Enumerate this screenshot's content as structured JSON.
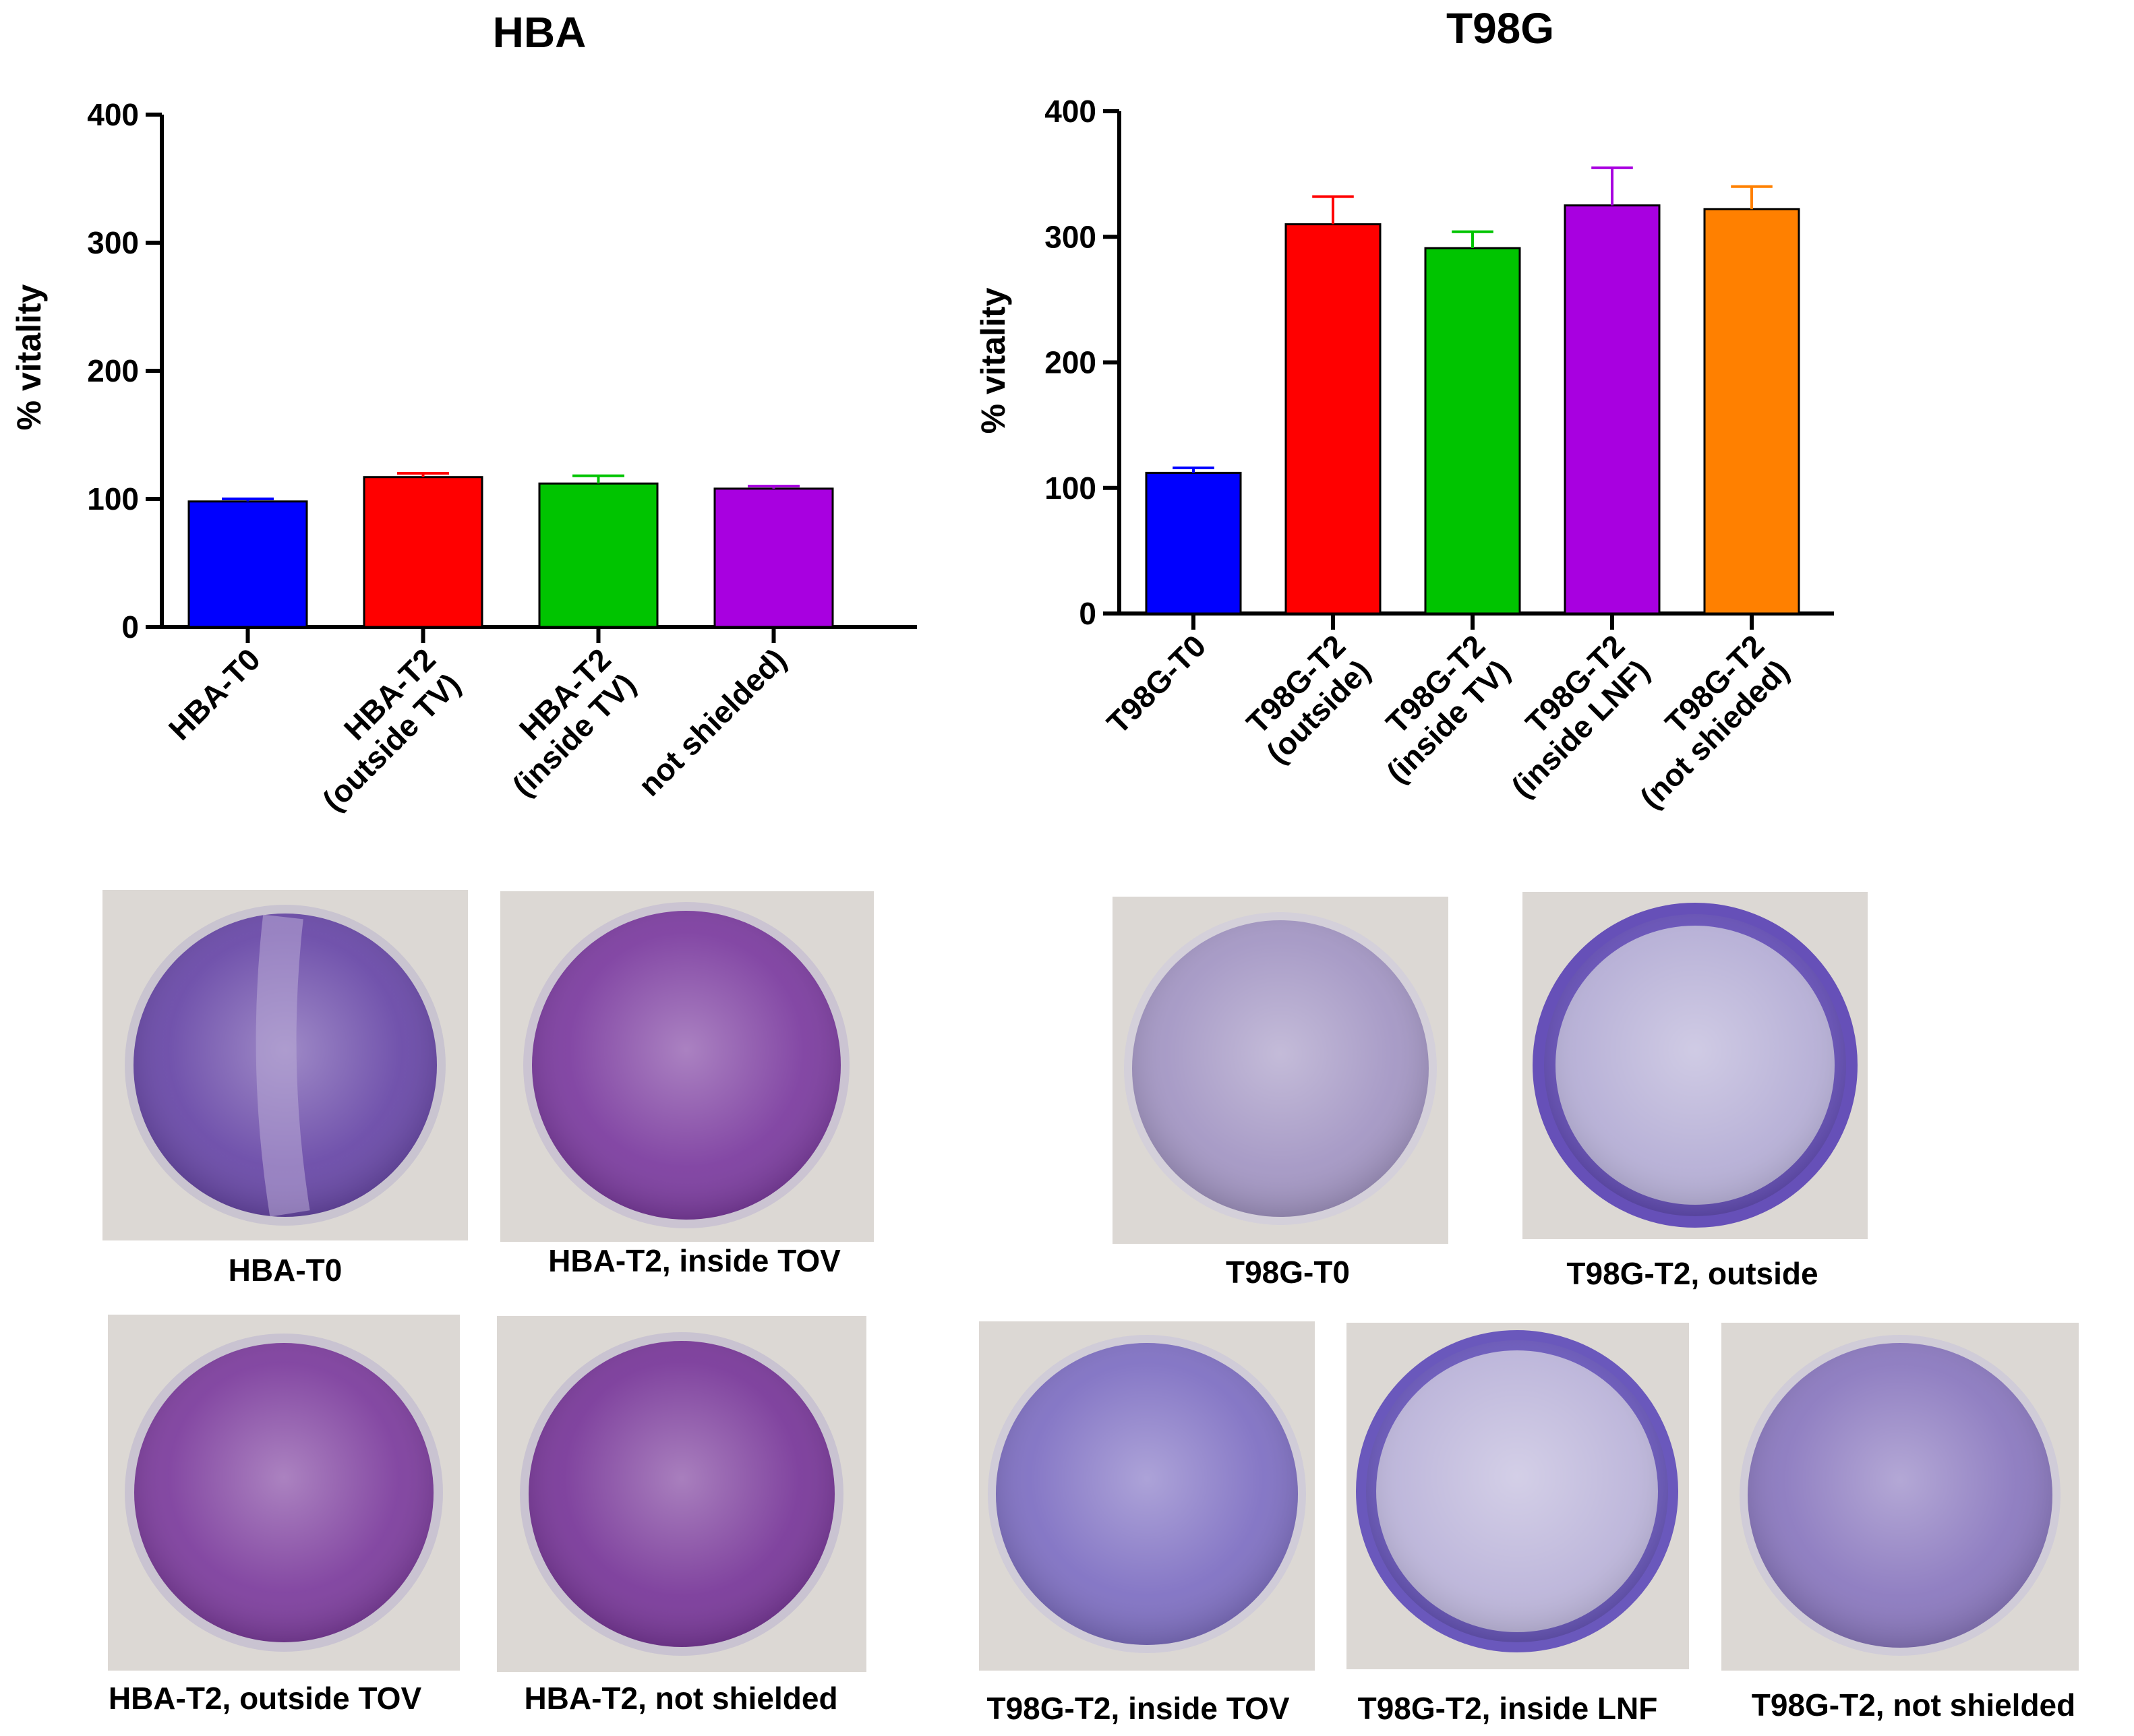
{
  "chart_data": [
    {
      "type": "bar",
      "title": "HBA",
      "xlabel": "",
      "ylabel": "% vitality",
      "ylim": [
        0,
        400
      ],
      "yticks": [
        0,
        100,
        200,
        300,
        400
      ],
      "grid": false,
      "categories": [
        [
          "HBA-T0"
        ],
        [
          "HBA-T2",
          "(outside TV)"
        ],
        [
          "HBA-T2",
          "(inside TV)"
        ],
        [
          "not shielded)"
        ]
      ],
      "values": [
        98,
        117,
        112,
        108
      ],
      "errors": [
        2,
        3,
        6,
        2
      ],
      "colors": [
        "#0000ff",
        "#ff0000",
        "#00c400",
        "#a800e0"
      ]
    },
    {
      "type": "bar",
      "title": "T98G",
      "xlabel": "",
      "ylabel": "% vitality",
      "ylim": [
        0,
        400
      ],
      "yticks": [
        0,
        100,
        200,
        300,
        400
      ],
      "grid": false,
      "categories": [
        [
          "T98G-T0"
        ],
        [
          "T98G-T2",
          "(outside)"
        ],
        [
          "T98G-T2",
          "(inside TV)"
        ],
        [
          "T98G-T2",
          "(inside LNF)"
        ],
        [
          "T98G-T2",
          "(not shieded)"
        ]
      ],
      "values": [
        112,
        310,
        291,
        325,
        322
      ],
      "errors": [
        4,
        22,
        13,
        30,
        18
      ],
      "colors": [
        "#0000ff",
        "#ff0000",
        "#00c400",
        "#a800e0",
        "#ff8000"
      ]
    }
  ],
  "photos": {
    "hba": [
      {
        "caption": "HBA-T0",
        "tone": "#6a4aa8"
      },
      {
        "caption": "HBA-T2, inside TOV",
        "tone": "#7d3ea0"
      },
      {
        "caption": "HBA-T2, outside TOV",
        "tone": "#7e3f9e"
      },
      {
        "caption": "HBA-T2, not shielded",
        "tone": "#7a3a9a"
      }
    ],
    "t98g": [
      {
        "caption": "T98G-T0",
        "tone": "#a497c4"
      },
      {
        "caption": "T98G-T2, outside",
        "tone": "#6650b8"
      },
      {
        "caption": "T98G-T2, inside TOV",
        "tone": "#5e4ab8"
      },
      {
        "caption": "T98G-T2, inside LNF",
        "tone": "#6a58bc"
      },
      {
        "caption": "T98G-T2, not shielded",
        "tone": "#6e55b5"
      }
    ]
  }
}
